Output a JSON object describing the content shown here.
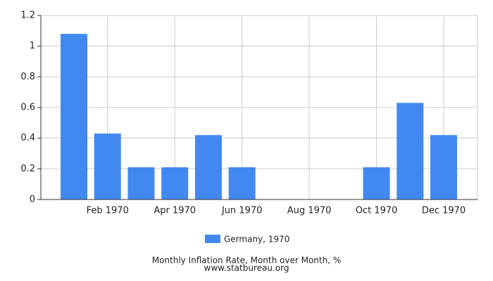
{
  "chart_data": {
    "type": "bar",
    "title": "Monthly Inflation Rate, Month over Month, %",
    "subtitle": "www.statbureau.org",
    "categories": [
      null,
      "Feb 1970",
      null,
      "Apr 1970",
      null,
      "Jun 1970",
      null,
      "Aug 1970",
      null,
      "Oct 1970",
      null,
      "Dec 1970"
    ],
    "series": [
      {
        "name": "Germany, 1970",
        "color": "#4189f0",
        "values": [
          1.08,
          0.43,
          0.21,
          0.21,
          0.42,
          0.21,
          0,
          0,
          0,
          0.21,
          0.63,
          0.42
        ]
      }
    ],
    "ylim": [
      0,
      1.2
    ],
    "yticks": [
      0,
      0.2,
      0.4,
      0.6,
      0.8,
      1,
      1.2
    ],
    "grid": true
  }
}
